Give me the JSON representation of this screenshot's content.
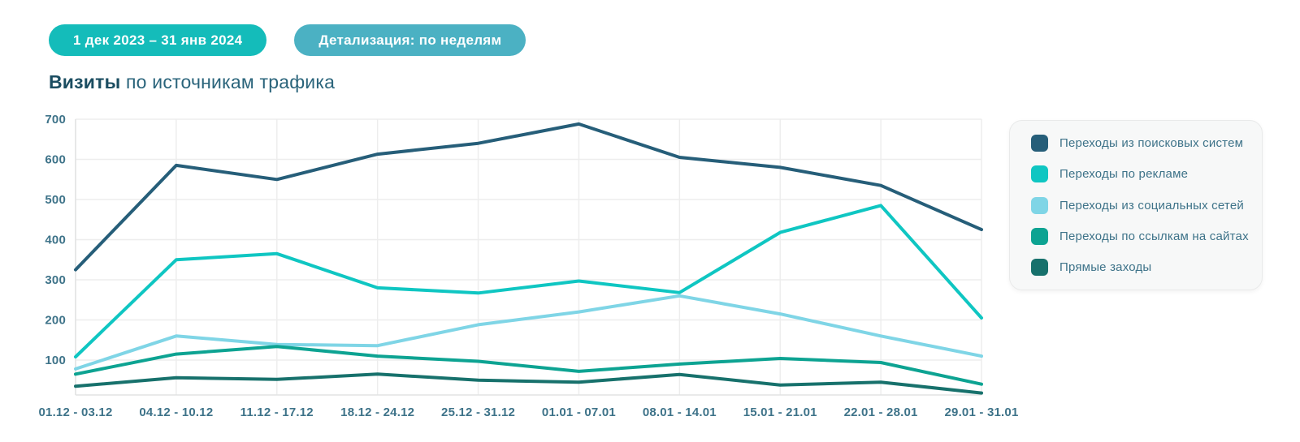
{
  "filters": {
    "date_range_label": "1 дек 2023 – 31 янв 2024",
    "granularity_label": "Детализация: по неделям"
  },
  "title": {
    "bold": "Визиты",
    "rest": "по источникам трафика"
  },
  "colors": {
    "date_chip_bg": "#14bcba",
    "granularity_chip_bg": "#4bb1c3",
    "grid_line": "#ededed",
    "axis_line": "#e2e3e3",
    "axis_text": "#3e7389",
    "title_text": "#1b4d61",
    "legend_bg": "#f7f8f8",
    "legend_border": "#e9eaea",
    "legend_text": "#3e7389"
  },
  "chart_data": {
    "type": "line",
    "title": "Визиты по источникам трафика",
    "categories": [
      "01.12 - 03.12",
      "04.12 - 10.12",
      "11.12 - 17.12",
      "18.12 - 24.12",
      "25.12 - 31.12",
      "01.01 - 07.01",
      "08.01 - 14.01",
      "15.01 - 21.01",
      "22.01 - 28.01",
      "29.01 - 31.01"
    ],
    "series": [
      {
        "name": "Переходы из поисковых систем",
        "color": "#265e79",
        "values": [
          325,
          585,
          550,
          613,
          640,
          688,
          605,
          580,
          535,
          425
        ]
      },
      {
        "name": "Переходы по рекламе",
        "color": "#0fc6c2",
        "values": [
          108,
          350,
          365,
          280,
          267,
          297,
          268,
          418,
          485,
          205
        ]
      },
      {
        "name": "Переходы из социальных сетей",
        "color": "#7fd5e6",
        "values": [
          78,
          160,
          139,
          136,
          188,
          220,
          260,
          215,
          160,
          110
        ]
      },
      {
        "name": "Переходы по ссылкам на сайтах",
        "color": "#0da392",
        "values": [
          65,
          115,
          134,
          110,
          97,
          72,
          90,
          104,
          94,
          40
        ]
      },
      {
        "name": "Прямые заходы",
        "color": "#17716c",
        "values": [
          35,
          56,
          52,
          65,
          50,
          45,
          64,
          38,
          45,
          18
        ]
      }
    ],
    "y_ticks": [
      100,
      200,
      300,
      400,
      500,
      600,
      700
    ],
    "ylim": [
      13,
      700
    ],
    "grid": true,
    "legend_position": "right"
  }
}
